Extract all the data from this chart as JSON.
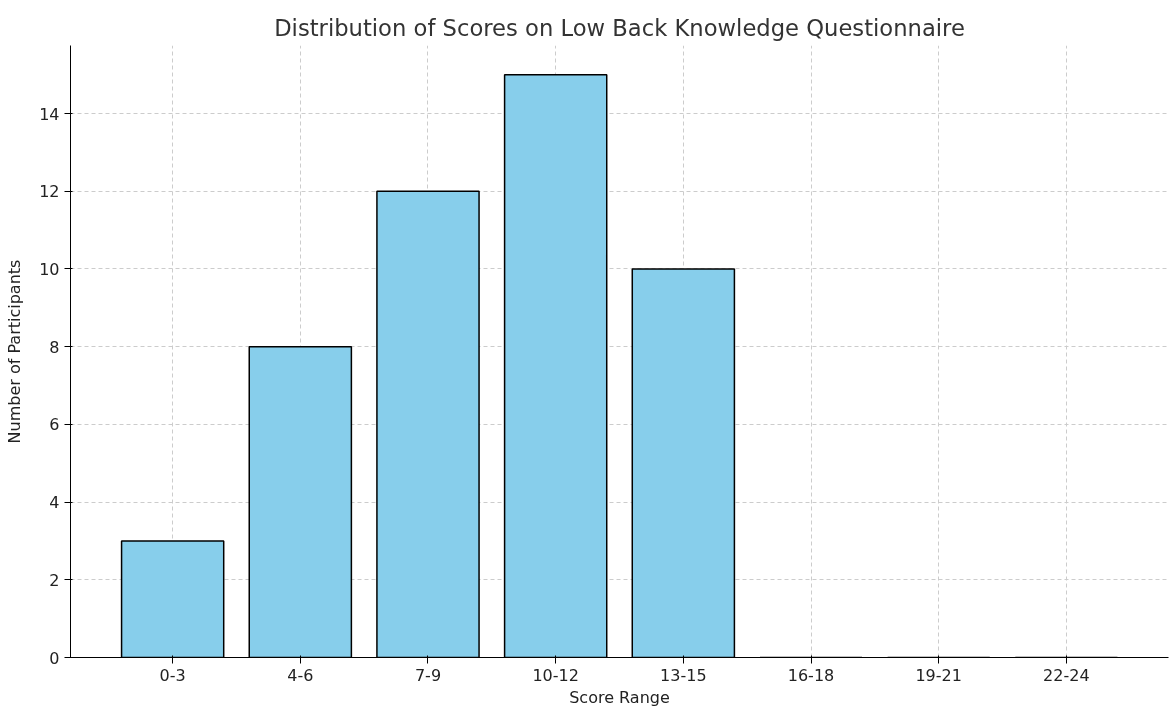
{
  "chart_data": {
    "type": "bar",
    "title": "Distribution of Scores on Low Back Knowledge Questionnaire",
    "xlabel": "Score Range",
    "ylabel": "Number of Participants",
    "categories": [
      "0-3",
      "4-6",
      "7-9",
      "10-12",
      "13-15",
      "16-18",
      "19-21",
      "22-24"
    ],
    "values": [
      3,
      8,
      12,
      15,
      10,
      0,
      0,
      0
    ],
    "color": "#87ceeb",
    "ylim": [
      0,
      15.75
    ],
    "yticks": [
      0,
      2,
      4,
      6,
      8,
      10,
      12,
      14
    ],
    "grid": true
  }
}
